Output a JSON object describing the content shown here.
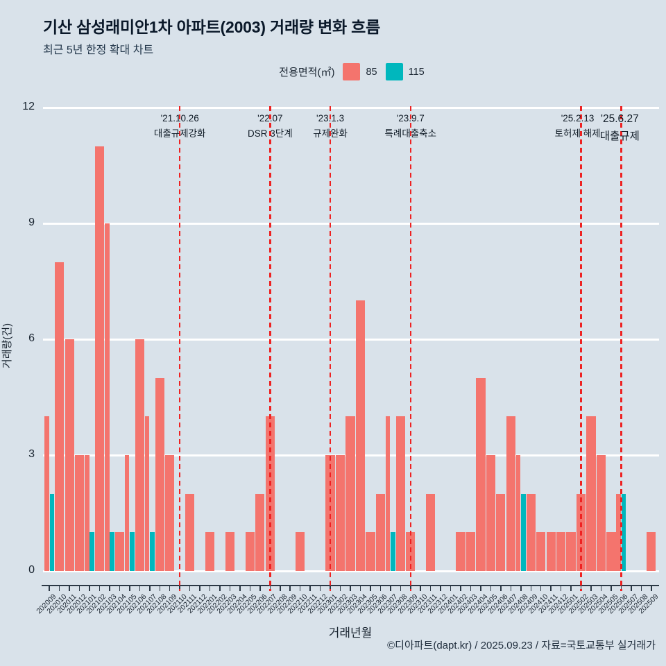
{
  "header": {
    "title": "기산 삼성래미안1차 아파트(2003) 거래량 변화 흐름",
    "subtitle": "최근 5년 한정 확대 차트"
  },
  "legend": {
    "title": "전용면적(㎡)",
    "items": [
      {
        "label": "85",
        "color": "#f4746d"
      },
      {
        "label": "115",
        "color": "#00b7bd"
      }
    ]
  },
  "chart_data": {
    "type": "bar",
    "title": "기산 삼성래미안1차 아파트(2003) 거래량 변화 흐름",
    "xlabel": "거래년월",
    "ylabel": "거래량(건)",
    "ylim": [
      0,
      12
    ],
    "yticks": [
      0,
      3,
      6,
      9,
      12
    ],
    "grid": "horizontal-white",
    "legend_position": "top-center",
    "categories": [
      "202009",
      "202010",
      "202011",
      "202012",
      "202101",
      "202102",
      "202103",
      "202104",
      "202105",
      "202106",
      "202107",
      "202108",
      "202109",
      "202110",
      "202111",
      "202112",
      "202201",
      "202202",
      "202203",
      "202204",
      "202205",
      "202206",
      "202207",
      "202208",
      "202209",
      "202210",
      "202211",
      "202212",
      "202301",
      "202302",
      "202303",
      "202304",
      "202305",
      "202306",
      "202307",
      "202308",
      "202309",
      "202310",
      "202311",
      "202312",
      "202401",
      "202402",
      "202403",
      "202404",
      "202405",
      "202406",
      "202407",
      "202408",
      "202409",
      "202410",
      "202411",
      "202412",
      "202501",
      "202502",
      "202503",
      "202504",
      "202505",
      "202506",
      "202507",
      "202508",
      "202509"
    ],
    "series": [
      {
        "name": "85",
        "color": "#f4746d",
        "values": [
          4,
          8,
          6,
          3,
          3,
          11,
          9,
          1,
          3,
          6,
          4,
          5,
          3,
          0,
          2,
          0,
          1,
          0,
          1,
          0,
          1,
          2,
          4,
          0,
          0,
          1,
          0,
          0,
          3,
          3,
          4,
          7,
          1,
          2,
          4,
          4,
          1,
          0,
          2,
          0,
          0,
          1,
          1,
          5,
          3,
          2,
          4,
          3,
          2,
          1,
          1,
          1,
          1,
          2,
          4,
          3,
          1,
          2,
          0,
          0,
          1
        ]
      },
      {
        "name": "115",
        "color": "#00b7bd",
        "values": [
          2,
          0,
          0,
          0,
          1,
          0,
          1,
          0,
          1,
          0,
          1,
          0,
          0,
          0,
          0,
          0,
          0,
          0,
          0,
          0,
          0,
          0,
          0,
          0,
          0,
          0,
          0,
          0,
          0,
          0,
          0,
          0,
          0,
          0,
          1,
          0,
          0,
          0,
          0,
          0,
          0,
          0,
          0,
          0,
          0,
          0,
          0,
          2,
          0,
          0,
          0,
          0,
          0,
          0,
          0,
          0,
          0,
          2,
          0,
          0,
          0
        ]
      }
    ],
    "annotations": [
      {
        "x": "202110",
        "date": "'21.10.26",
        "label": "대출규제강화",
        "size": 13.5,
        "dx": 0
      },
      {
        "x": "202207",
        "date": "'22.07",
        "label": "DSR 3단계",
        "size": 13.5,
        "dx": 0
      },
      {
        "x": "202301",
        "date": "'23.1.3",
        "label": "규제완화",
        "size": 13.5,
        "dx": 0
      },
      {
        "x": "202309",
        "date": "'23.9.7",
        "label": "특례대출축소",
        "size": 13.5,
        "dx": 0
      },
      {
        "x": "202502",
        "date": "'25.2.13",
        "label": "토허제 해제",
        "size": 13.5,
        "dx": -5
      },
      {
        "x": "202506",
        "date": "'25.6.27",
        "label": "대출규제",
        "size": 15.5,
        "dx": -2
      }
    ],
    "annotation_line_color": "#ee2222",
    "background_color": "#d9e2ea",
    "gridline_color": "#ffffff"
  },
  "footer": {
    "credit": "©디아파트(dapt.kr) / 2025.09.23 / 자료=국토교통부 실거래가"
  }
}
